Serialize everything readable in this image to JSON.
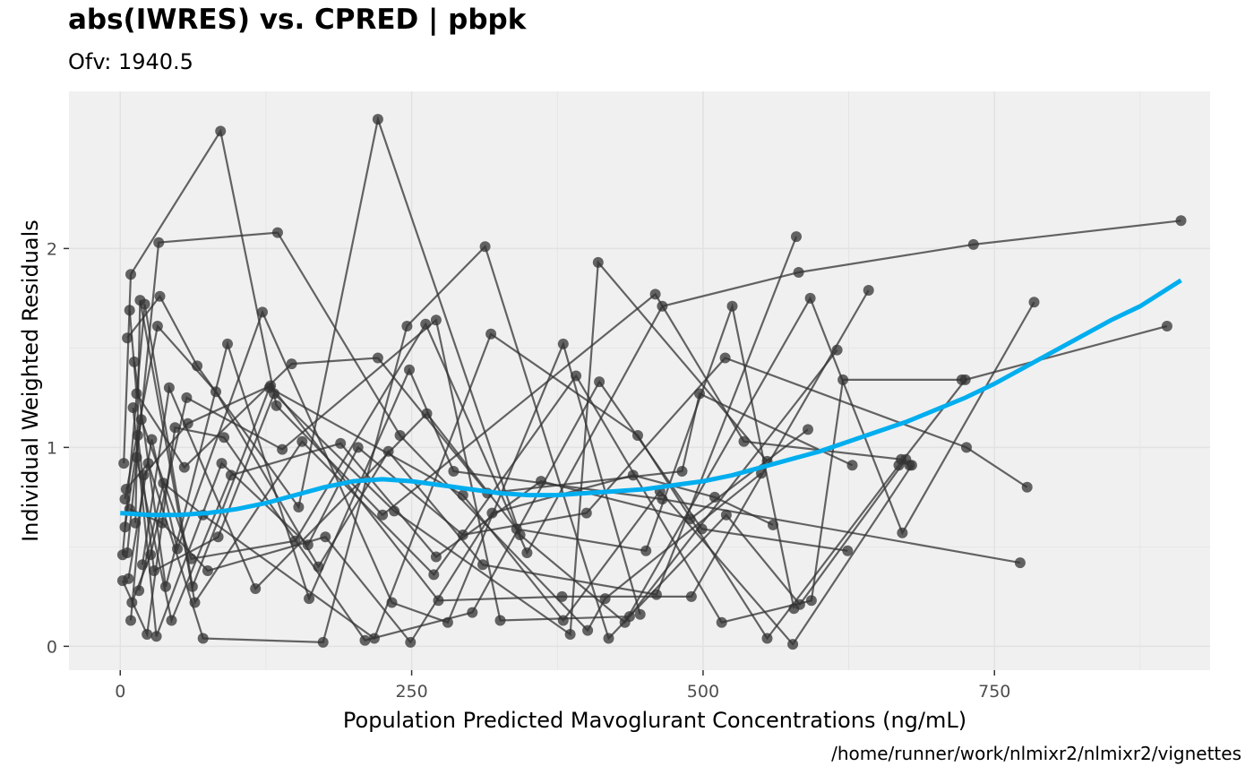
{
  "chart_data": {
    "type": "scatter",
    "title": "abs(IWRES) vs. CPRED | pbpk",
    "subtitle": "Ofv: 1940.5",
    "xlabel": "Population Predicted Mavoglurant Concentrations (ng/mL)",
    "ylabel": "Individual Weighted Residuals",
    "caption": "/home/runner/work/nlmixr2/nlmixr2/vignettes",
    "xlim": [
      -44,
      935
    ],
    "ylim": [
      -0.12,
      2.79
    ],
    "xticks": [
      0,
      250,
      500,
      750
    ],
    "xtick_labels": [
      "0",
      "250",
      "500",
      "750"
    ],
    "yticks": [
      0,
      1,
      2
    ],
    "ytick_labels": [
      "0",
      "1",
      "2"
    ],
    "grid": true,
    "colors": {
      "panel_background": "#f0f0f0",
      "grid": "#e2e2e2",
      "points_lines": "#333333",
      "smooth": "#00aeef"
    },
    "series": [
      {
        "values": [
          [
            3,
            0.92
          ],
          [
            9,
            1.87
          ],
          [
            86,
            2.59
          ],
          [
            134,
            1.21
          ],
          [
            225,
            0.66
          ],
          [
            459,
            1.77
          ],
          [
            535,
            1.03
          ],
          [
            670,
            0.94
          ],
          [
            677,
            0.91
          ]
        ]
      },
      {
        "values": [
          [
            6,
            0.47
          ],
          [
            33,
            2.03
          ],
          [
            135,
            2.08
          ],
          [
            240,
            1.06
          ],
          [
            401,
            0.08
          ],
          [
            416,
            0.24
          ],
          [
            550,
            0.87
          ]
        ]
      },
      {
        "values": [
          [
            8,
            1.69
          ],
          [
            14,
            1.27
          ],
          [
            55,
            0.9
          ],
          [
            147,
            1.42
          ],
          [
            221,
            1.45
          ],
          [
            315,
            0.77
          ],
          [
            482,
            0.88
          ],
          [
            497,
            1.27
          ],
          [
            628,
            0.91
          ]
        ]
      },
      {
        "values": [
          [
            2,
            0.46
          ],
          [
            21,
            1.72
          ],
          [
            62,
            0.3
          ],
          [
            128,
            1.3
          ],
          [
            294,
            0.76
          ],
          [
            380,
            0.13
          ],
          [
            463,
            0.78
          ],
          [
            577,
            0.01
          ],
          [
            679,
            0.91
          ]
        ]
      },
      {
        "values": [
          [
            6,
            1.55
          ],
          [
            34,
            1.76
          ],
          [
            66,
            1.41
          ],
          [
            153,
            0.7
          ],
          [
            221,
            2.65
          ],
          [
            343,
            0.56
          ],
          [
            433,
            0.12
          ],
          [
            592,
            1.75
          ],
          [
            671,
            0.57
          ],
          [
            784,
            1.73
          ]
        ]
      },
      {
        "values": [
          [
            4,
            0.74
          ],
          [
            32,
            1.61
          ],
          [
            82,
            1.28
          ],
          [
            170,
            0.4
          ],
          [
            230,
            0.98
          ],
          [
            311,
            0.41
          ],
          [
            460,
            0.26
          ],
          [
            580,
            2.06
          ]
        ]
      },
      {
        "values": [
          [
            10,
            0.22
          ],
          [
            26,
            0.46
          ],
          [
            57,
            1.25
          ],
          [
            139,
            0.99
          ],
          [
            271,
            1.64
          ],
          [
            326,
            0.13
          ],
          [
            437,
            0.15
          ],
          [
            615,
            1.49
          ]
        ]
      },
      {
        "values": [
          [
            12,
            1.43
          ],
          [
            39,
            0.3
          ],
          [
            92,
            1.52
          ],
          [
            162,
            0.24
          ],
          [
            248,
            1.39
          ],
          [
            286,
            0.88
          ],
          [
            465,
            0.74
          ],
          [
            772,
            0.42
          ]
        ]
      },
      {
        "values": [
          [
            5,
            0.79
          ],
          [
            24,
            0.92
          ],
          [
            71,
            0.04
          ],
          [
            174,
            0.02
          ],
          [
            246,
            1.61
          ],
          [
            313,
            2.01
          ],
          [
            419,
            0.04
          ],
          [
            520,
            0.66
          ],
          [
            583,
            0.21
          ],
          [
            674,
            0.94
          ]
        ]
      },
      {
        "values": [
          [
            7,
            0.34
          ],
          [
            27,
            1.04
          ],
          [
            49,
            0.49
          ],
          [
            122,
            1.68
          ],
          [
            233,
            0.22
          ],
          [
            281,
            0.12
          ],
          [
            380,
            1.52
          ],
          [
            446,
            0.16
          ]
        ]
      },
      {
        "values": [
          [
            13,
            0.62
          ],
          [
            17,
            1.74
          ],
          [
            64,
            0.22
          ],
          [
            156,
            1.03
          ],
          [
            269,
            0.36
          ],
          [
            391,
            1.36
          ],
          [
            516,
            0.12
          ],
          [
            593,
            0.23
          ],
          [
            620,
            1.34
          ],
          [
            722,
            1.34
          ]
        ]
      },
      {
        "values": [
          [
            15,
            1.06
          ],
          [
            29,
            0.38
          ],
          [
            84,
            0.55
          ],
          [
            132,
            1.27
          ],
          [
            235,
            0.68
          ],
          [
            386,
            0.06
          ],
          [
            410,
            1.93
          ],
          [
            555,
            0.93
          ]
        ]
      },
      {
        "values": [
          [
            9,
            0.13
          ],
          [
            20,
            0.86
          ],
          [
            58,
            1.12
          ],
          [
            129,
            1.31
          ],
          [
            273,
            0.23
          ],
          [
            379,
            0.25
          ],
          [
            490,
            0.25
          ],
          [
            642,
            1.79
          ]
        ]
      },
      {
        "values": [
          [
            11,
            1.2
          ],
          [
            31,
            0.05
          ],
          [
            87,
            0.92
          ],
          [
            161,
            0.51
          ],
          [
            204,
            1.0
          ],
          [
            294,
            0.56
          ],
          [
            400,
            0.67
          ],
          [
            519,
            1.45
          ],
          [
            726,
            1.0
          ],
          [
            778,
            0.8
          ]
        ]
      },
      {
        "values": [
          [
            4,
            0.6
          ],
          [
            18,
            1.14
          ],
          [
            61,
            0.44
          ],
          [
            150,
            0.53
          ],
          [
            262,
            1.62
          ],
          [
            349,
            0.47
          ],
          [
            465,
            1.71
          ],
          [
            582,
            1.88
          ],
          [
            732,
            2.02
          ],
          [
            910,
            2.14
          ]
        ]
      },
      {
        "values": [
          [
            16,
            0.28
          ],
          [
            37,
            0.82
          ],
          [
            71,
            0.66
          ],
          [
            218,
            0.04
          ],
          [
            318,
            1.57
          ],
          [
            444,
            1.06
          ],
          [
            555,
            0.04
          ],
          [
            668,
            0.91
          ],
          [
            725,
            1.34
          ],
          [
            898,
            1.61
          ]
        ]
      },
      {
        "values": [
          [
            2,
            0.33
          ],
          [
            23,
            0.06
          ],
          [
            47,
            1.1
          ],
          [
            89,
            1.05
          ],
          [
            210,
            0.03
          ],
          [
            302,
            0.17
          ],
          [
            411,
            1.33
          ],
          [
            499,
            0.59
          ],
          [
            624,
            0.48
          ]
        ]
      },
      {
        "values": [
          [
            19,
            0.41
          ],
          [
            42,
            1.3
          ],
          [
            116,
            0.29
          ],
          [
            263,
            1.17
          ],
          [
            340,
            0.59
          ],
          [
            451,
            0.48
          ],
          [
            525,
            1.71
          ],
          [
            578,
            0.19
          ]
        ]
      },
      {
        "values": [
          [
            8,
            0.69
          ],
          [
            36,
            0.62
          ],
          [
            75,
            0.38
          ],
          [
            176,
            0.55
          ],
          [
            249,
            0.02
          ],
          [
            319,
            0.67
          ],
          [
            440,
            0.86
          ],
          [
            510,
            0.75
          ],
          [
            560,
            0.61
          ]
        ]
      },
      {
        "values": [
          [
            14,
            0.95
          ],
          [
            44,
            0.13
          ],
          [
            95,
            0.86
          ],
          [
            189,
            1.02
          ],
          [
            271,
            0.45
          ],
          [
            361,
            0.83
          ],
          [
            489,
            0.64
          ],
          [
            590,
            1.09
          ]
        ]
      }
    ],
    "smooth": {
      "x": [
        0,
        25,
        50,
        75,
        100,
        125,
        150,
        175,
        200,
        225,
        250,
        275,
        300,
        325,
        350,
        375,
        400,
        425,
        450,
        475,
        500,
        525,
        550,
        575,
        600,
        625,
        650,
        675,
        700,
        725,
        750,
        775,
        800,
        825,
        850,
        875,
        910
      ],
      "y": [
        0.67,
        0.66,
        0.66,
        0.67,
        0.69,
        0.72,
        0.76,
        0.8,
        0.83,
        0.84,
        0.83,
        0.81,
        0.79,
        0.77,
        0.76,
        0.76,
        0.77,
        0.78,
        0.79,
        0.81,
        0.83,
        0.86,
        0.9,
        0.94,
        0.98,
        1.03,
        1.08,
        1.13,
        1.19,
        1.25,
        1.32,
        1.4,
        1.48,
        1.56,
        1.64,
        1.71,
        1.84
      ]
    }
  }
}
